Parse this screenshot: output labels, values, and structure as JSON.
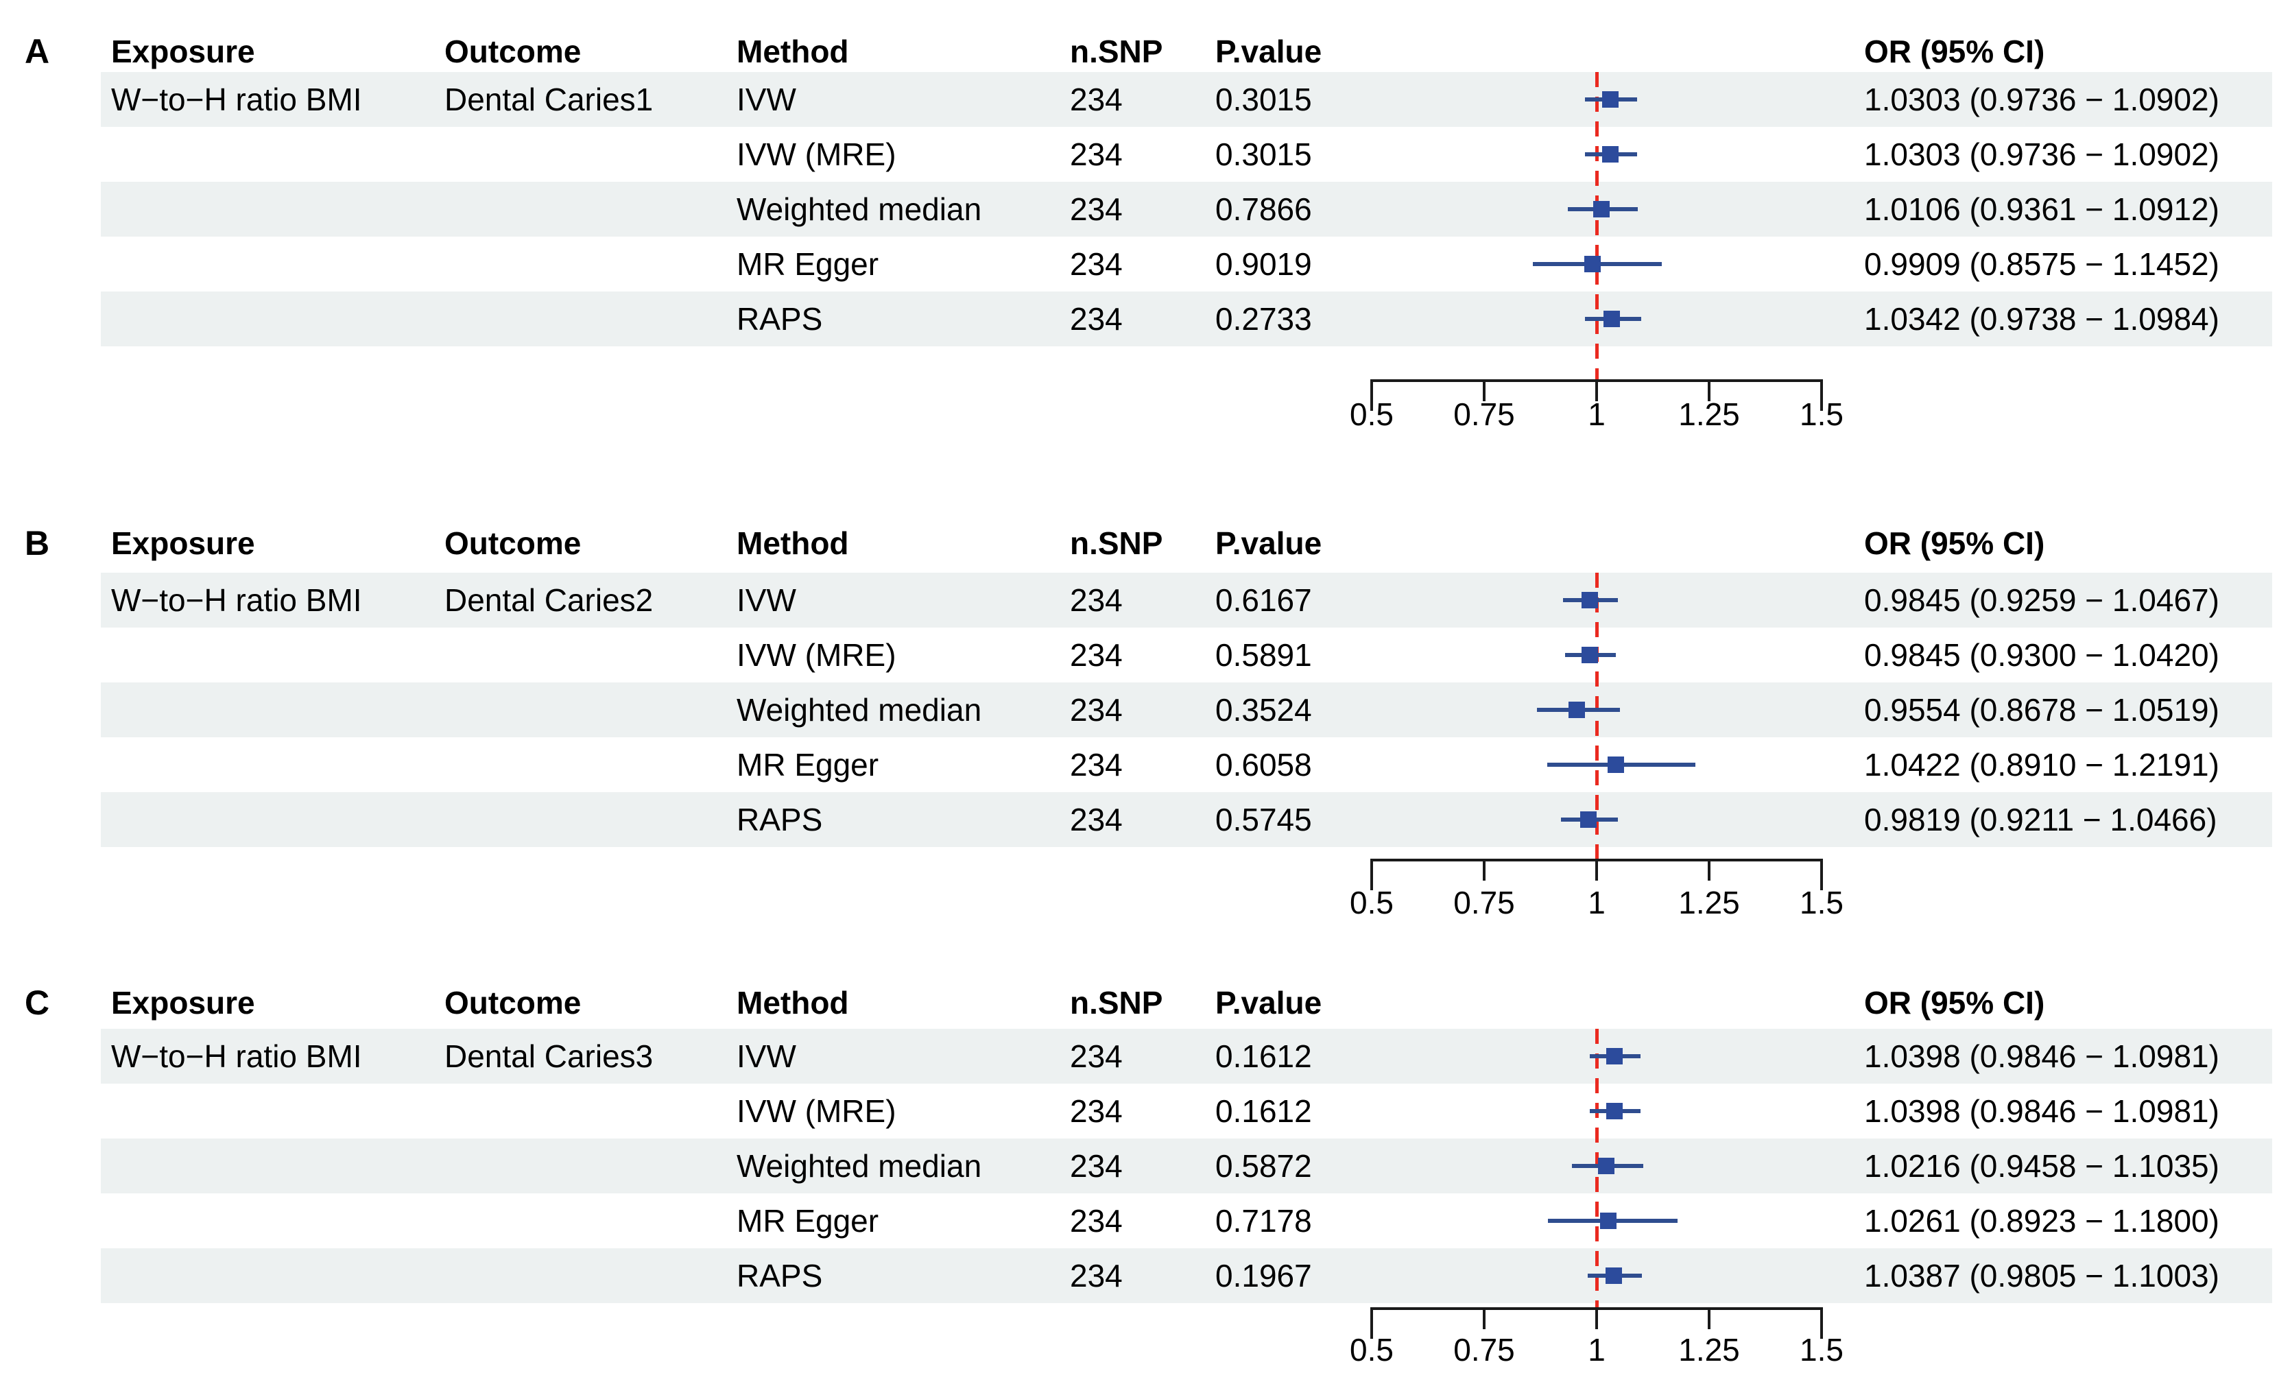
{
  "figure": {
    "columns": {
      "exposure": "Exposure",
      "outcome": "Outcome",
      "method": "Method",
      "n_snp": "n.SNP",
      "p_value": "P.value",
      "or_ci": "OR (95% CI)"
    },
    "colors": {
      "row_band": "#edf1f1",
      "marker": "#2c4b9c",
      "ci_line": "#2f4d8f",
      "reference_line": "#ea2a20",
      "axis": "#1a1a1a",
      "text": "#000000"
    }
  },
  "chart_data": {
    "type": "forest",
    "title": "",
    "xlabel": "",
    "legend": [],
    "grid": false,
    "axis": {
      "min": 0.5,
      "max": 1.5,
      "tick_values": [
        0.5,
        0.75,
        1,
        1.25,
        1.5
      ],
      "tick_labels": [
        "0.5",
        "0.75",
        "1",
        "1.25",
        "1.5"
      ],
      "reference_value": 1,
      "reference_style": "red-dashed"
    },
    "panels": [
      {
        "label": "A",
        "exposure": "W−to−H ratio BMI",
        "outcome": "Dental Caries1",
        "rows": [
          {
            "method": "IVW",
            "n_snp": "234",
            "p_value": "0.3015",
            "or": 1.0303,
            "ci_low": 0.9736,
            "ci_high": 1.0902,
            "or_text": "1.0303 (0.9736 − 1.0902)"
          },
          {
            "method": "IVW (MRE)",
            "n_snp": "234",
            "p_value": "0.3015",
            "or": 1.0303,
            "ci_low": 0.9736,
            "ci_high": 1.0902,
            "or_text": "1.0303 (0.9736 − 1.0902)"
          },
          {
            "method": "Weighted median",
            "n_snp": "234",
            "p_value": "0.7866",
            "or": 1.0106,
            "ci_low": 0.9361,
            "ci_high": 1.0912,
            "or_text": "1.0106 (0.9361 − 1.0912)"
          },
          {
            "method": "MR Egger",
            "n_snp": "234",
            "p_value": "0.9019",
            "or": 0.9909,
            "ci_low": 0.8575,
            "ci_high": 1.1452,
            "or_text": "0.9909 (0.8575 − 1.1452)"
          },
          {
            "method": "RAPS",
            "n_snp": "234",
            "p_value": "0.2733",
            "or": 1.0342,
            "ci_low": 0.9738,
            "ci_high": 1.0984,
            "or_text": "1.0342 (0.9738 − 1.0984)"
          }
        ]
      },
      {
        "label": "B",
        "exposure": "W−to−H ratio BMI",
        "outcome": "Dental Caries2",
        "rows": [
          {
            "method": "IVW",
            "n_snp": "234",
            "p_value": "0.6167",
            "or": 0.9845,
            "ci_low": 0.9259,
            "ci_high": 1.0467,
            "or_text": "0.9845 (0.9259 − 1.0467)"
          },
          {
            "method": "IVW (MRE)",
            "n_snp": "234",
            "p_value": "0.5891",
            "or": 0.9845,
            "ci_low": 0.93,
            "ci_high": 1.042,
            "or_text": "0.9845 (0.9300 − 1.0420)"
          },
          {
            "method": "Weighted median",
            "n_snp": "234",
            "p_value": "0.3524",
            "or": 0.9554,
            "ci_low": 0.8678,
            "ci_high": 1.0519,
            "or_text": "0.9554 (0.8678 − 1.0519)"
          },
          {
            "method": "MR Egger",
            "n_snp": "234",
            "p_value": "0.6058",
            "or": 1.0422,
            "ci_low": 0.891,
            "ci_high": 1.2191,
            "or_text": "1.0422 (0.8910 − 1.2191)"
          },
          {
            "method": "RAPS",
            "n_snp": "234",
            "p_value": "0.5745",
            "or": 0.9819,
            "ci_low": 0.9211,
            "ci_high": 1.0466,
            "or_text": "0.9819 (0.9211 − 1.0466)"
          }
        ]
      },
      {
        "label": "C",
        "exposure": "W−to−H ratio BMI",
        "outcome": "Dental Caries3",
        "rows": [
          {
            "method": "IVW",
            "n_snp": "234",
            "p_value": "0.1612",
            "or": 1.0398,
            "ci_low": 0.9846,
            "ci_high": 1.0981,
            "or_text": "1.0398 (0.9846 − 1.0981)"
          },
          {
            "method": "IVW (MRE)",
            "n_snp": "234",
            "p_value": "0.1612",
            "or": 1.0398,
            "ci_low": 0.9846,
            "ci_high": 1.0981,
            "or_text": "1.0398 (0.9846 − 1.0981)"
          },
          {
            "method": "Weighted median",
            "n_snp": "234",
            "p_value": "0.5872",
            "or": 1.0216,
            "ci_low": 0.9458,
            "ci_high": 1.1035,
            "or_text": "1.0216 (0.9458 − 1.1035)"
          },
          {
            "method": "MR Egger",
            "n_snp": "234",
            "p_value": "0.7178",
            "or": 1.0261,
            "ci_low": 0.8923,
            "ci_high": 1.18,
            "or_text": "1.0261 (0.8923 − 1.1800)"
          },
          {
            "method": "RAPS",
            "n_snp": "234",
            "p_value": "0.1967",
            "or": 1.0387,
            "ci_low": 0.9805,
            "ci_high": 1.1003,
            "or_text": "1.0387 (0.9805 − 1.1003)"
          }
        ]
      }
    ]
  }
}
